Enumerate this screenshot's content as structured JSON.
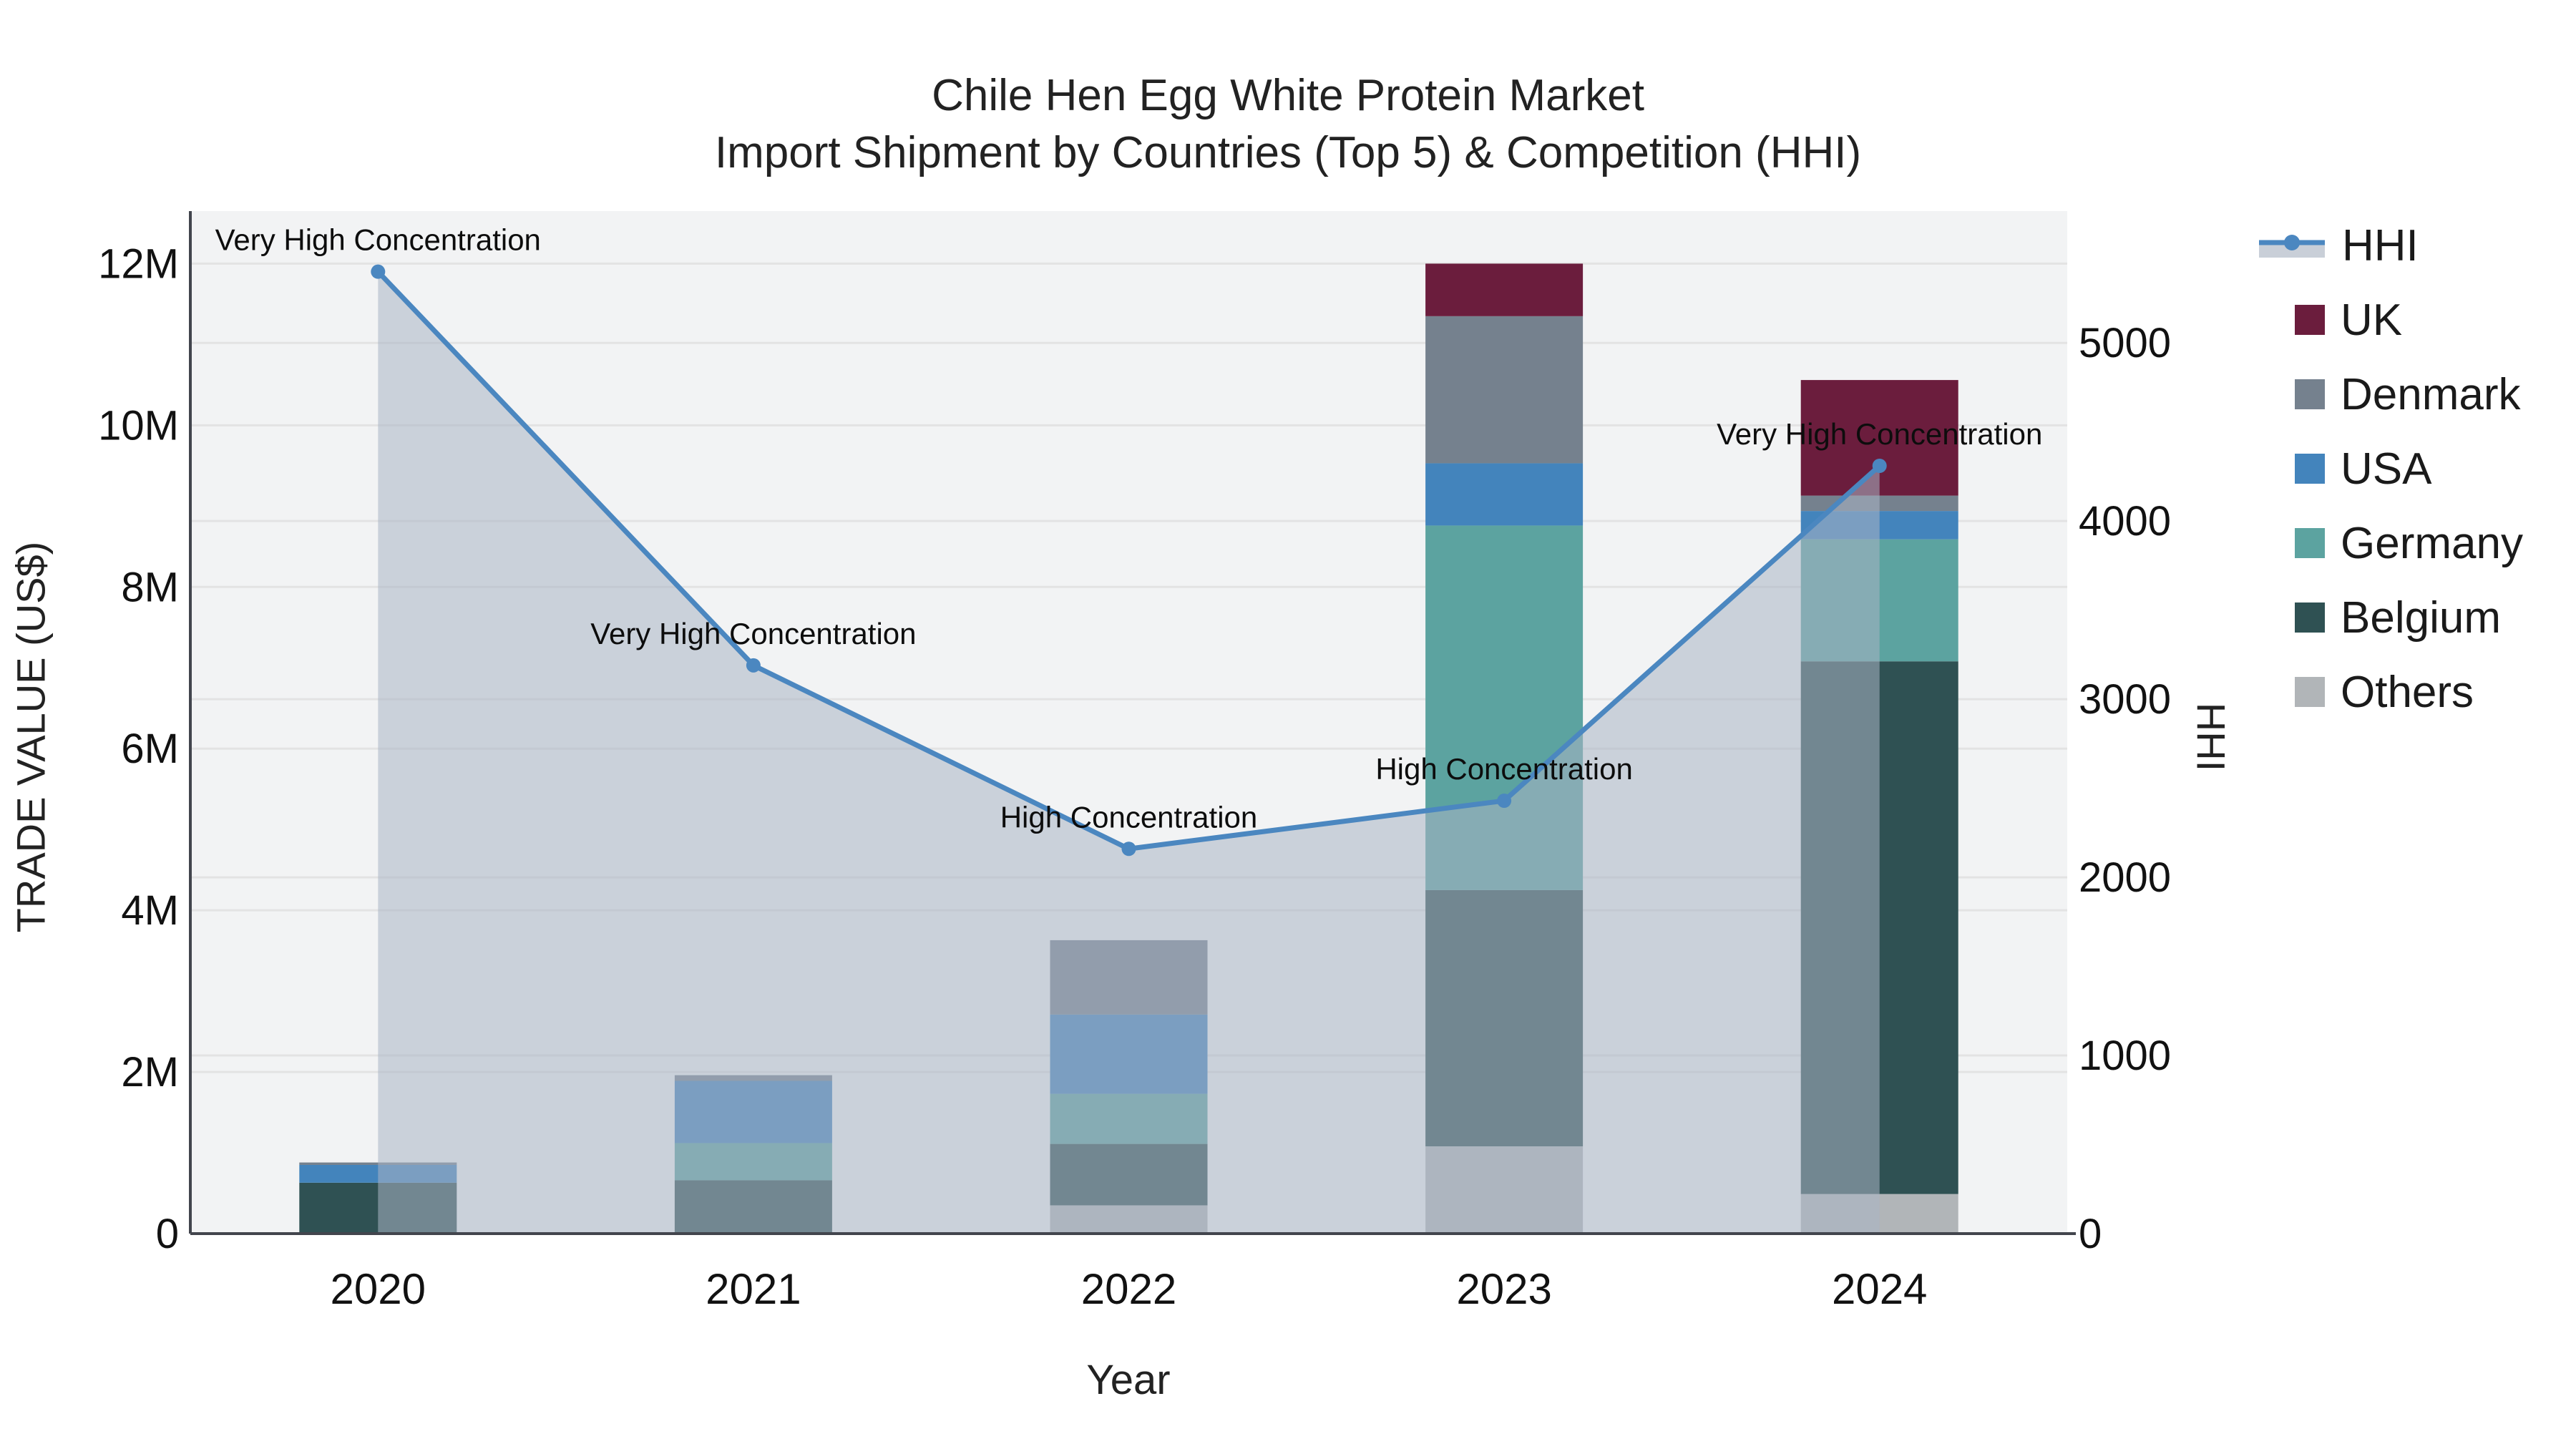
{
  "chart_data": {
    "type": "combo-stacked-bar-line",
    "title": "Chile Hen Egg White Protein Market",
    "subtitle": "Import Shipment by Countries (Top 5) & Competition (HHI)",
    "xlabel": "Year",
    "ylabel_left": "TRADE VALUE (US$)",
    "ylabel_right": "HHI",
    "categories": [
      "2020",
      "2021",
      "2022",
      "2023",
      "2024"
    ],
    "bar_unit": "M US$",
    "stack_order_bottom_to_top": [
      "Others",
      "Belgium",
      "Germany",
      "USA",
      "Denmark",
      "UK"
    ],
    "series": [
      {
        "name": "Others",
        "color": "#B1B5B8",
        "values": [
          0,
          0,
          0.35,
          1.08,
          0.49
        ]
      },
      {
        "name": "Belgium",
        "color": "#2F5153",
        "values": [
          0.63,
          0.66,
          0.76,
          3.17,
          6.59
        ]
      },
      {
        "name": "Germany",
        "color": "#5CA3A0",
        "values": [
          0,
          0.46,
          0.62,
          4.51,
          1.51
        ]
      },
      {
        "name": "USA",
        "color": "#4384BC",
        "values": [
          0.22,
          0.77,
          0.98,
          0.77,
          0.35
        ]
      },
      {
        "name": "Denmark",
        "color": "#75818E",
        "values": [
          0.03,
          0.07,
          0.92,
          1.82,
          0.19
        ]
      },
      {
        "name": "UK",
        "color": "#6B1D3D",
        "values": [
          0,
          0,
          0,
          0.65,
          1.43
        ]
      }
    ],
    "line_series": {
      "name": "HHI",
      "color": "#4B87C0",
      "area_fill": "rgba(170,180,196,0.55)",
      "values": [
        5400,
        3190,
        2160,
        2430,
        4310
      ]
    },
    "annotations": [
      {
        "year": "2020",
        "label": "Very High Concentration"
      },
      {
        "year": "2021",
        "label": "Very High Concentration"
      },
      {
        "year": "2022",
        "label": "High Concentration"
      },
      {
        "year": "2023",
        "label": "High Concentration"
      },
      {
        "year": "2024",
        "label": "Very High Concentration"
      }
    ],
    "y_left": {
      "tick_labels": [
        "0",
        "2M",
        "4M",
        "6M",
        "8M",
        "10M",
        "12M"
      ],
      "tick_values_m": [
        0,
        2,
        4,
        6,
        8,
        10,
        12
      ],
      "max_m": 12.65
    },
    "y_right": {
      "tick_labels": [
        "0",
        "1000",
        "2000",
        "3000",
        "4000",
        "5000"
      ],
      "tick_values": [
        0,
        1000,
        2000,
        3000,
        4000,
        5000
      ],
      "max": 5740
    },
    "legend_order": [
      "HHI",
      "UK",
      "Denmark",
      "USA",
      "Germany",
      "Belgium",
      "Others"
    ],
    "style": {
      "plot_bg": "#F2F3F4",
      "grid_color": "#E3E3E3",
      "axis_line_color": "#42454D",
      "text_color": "#111111",
      "legend_area_sample": "#C9CFD8"
    }
  }
}
